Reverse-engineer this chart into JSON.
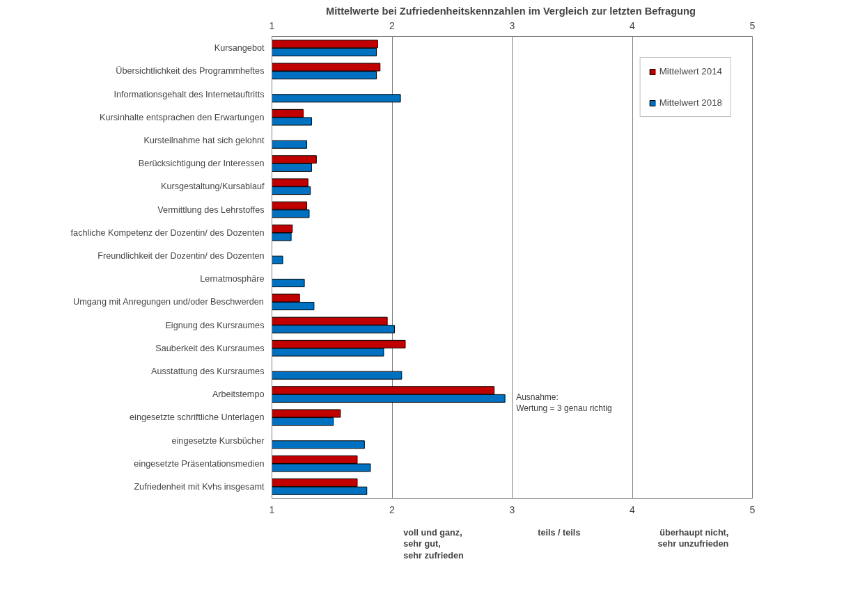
{
  "chart_data": {
    "type": "bar",
    "orientation": "horizontal",
    "title": "Mittelwerte bei Zufriedenheitskennzahlen  im Vergleich zur letzten Befragung",
    "categories": [
      "Kursangebot",
      "Übersichtlichkeit des Programmheftes",
      "Informationsgehalt des Internetauftritts",
      "Kursinhalte entsprachen den Erwartungen",
      "Kursteilnahme hat sich gelohnt",
      "Berücksichtigung der Interessen",
      "Kursgestaltung/Kursablauf",
      "Vermittlung des Lehrstoffes",
      "fachliche Kompetenz der Dozentin/ des Dozenten",
      "Freundlichkeit der Dozentin/ des Dozenten",
      "Lernatmosphäre",
      "Umgang mit Anregungen und/oder Beschwerden",
      "Eignung des Kursraumes",
      "Sauberkeit des Kursraumes",
      "Ausstattung des Kursraumes",
      "Arbeitstempo",
      "eingesetzte schriftliche Unterlagen",
      "eingesetzte Kursbücher",
      "eingesetzte Präsentationsmedien",
      "Zufriedenheit mit Kvhs insgesamt"
    ],
    "series": [
      {
        "name": "Mittelwert 2014",
        "color": "#c00000",
        "values": [
          1.88,
          1.9,
          null,
          1.26,
          null,
          1.37,
          1.3,
          1.29,
          1.17,
          null,
          null,
          1.23,
          1.96,
          2.11,
          null,
          2.85,
          1.57,
          null,
          1.71,
          1.71
        ]
      },
      {
        "name": "Mittelwert 2018",
        "color": "#0070c0",
        "values": [
          1.87,
          1.87,
          2.07,
          1.33,
          1.29,
          1.33,
          1.32,
          1.31,
          1.16,
          1.09,
          1.27,
          1.35,
          2.02,
          1.93,
          2.08,
          2.94,
          1.51,
          1.77,
          1.82,
          1.79
        ]
      }
    ],
    "xlim": [
      1,
      5
    ],
    "xticks": [
      1,
      2,
      3,
      4,
      5
    ],
    "x2lim": [
      1,
      5
    ],
    "x2ticks": [
      1,
      2,
      3,
      4,
      5
    ],
    "grid": "x",
    "legend": "top right",
    "annotations": [
      "Ausnahme:\nWertung = 3 genau richtig",
      "voll und ganz,\nsehr gut,\nsehr zufrieden",
      "teils / teils",
      "überhaupt nicht,\nsehr unzufrieden"
    ]
  }
}
